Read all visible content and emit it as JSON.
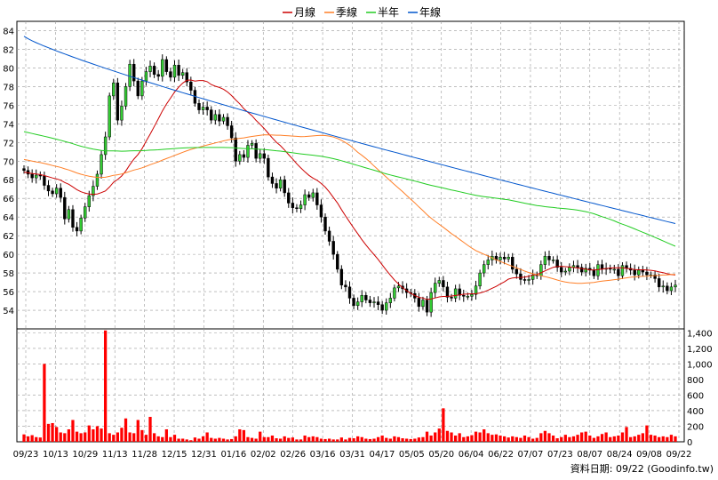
{
  "chart_data": {
    "type": "candlestick",
    "legend": [
      {
        "name": "月線",
        "color": "#cc0000"
      },
      {
        "name": "季線",
        "color": "#ff7f27"
      },
      {
        "name": "半年",
        "color": "#22cc22"
      },
      {
        "name": "年線",
        "color": "#0055cc"
      }
    ],
    "legend_position": "top-center",
    "grid": true,
    "price_axis": {
      "side": "left",
      "ylim": [
        52,
        85
      ],
      "ticks": [
        54,
        56,
        58,
        60,
        62,
        64,
        66,
        68,
        70,
        72,
        74,
        76,
        78,
        80,
        82,
        84
      ]
    },
    "volume_axis": {
      "side": "right",
      "ylim": [
        0,
        1450
      ],
      "ticks": [
        "0",
        "200",
        "400",
        "600",
        "800",
        "1,000",
        "1,200",
        "1,400"
      ]
    },
    "x_labels": [
      "09/23",
      "10/13",
      "10/29",
      "11/13",
      "11/28",
      "12/15",
      "12/31",
      "01/16",
      "02/02",
      "02/26",
      "03/16",
      "03/31",
      "04/17",
      "05/05",
      "05/20",
      "06/04",
      "06/22",
      "07/07",
      "07/23",
      "08/07",
      "08/24",
      "09/08",
      "09/22"
    ],
    "candle_colors": {
      "up": "#33cc33",
      "down": "#000000",
      "volume": "#ff0000"
    },
    "close": [
      69.0,
      68.6,
      68.2,
      68.5,
      68.4,
      67.4,
      66.8,
      66.5,
      67.1,
      66.1,
      63.8,
      64.8,
      62.9,
      62.5,
      63.9,
      65.1,
      66.3,
      67.3,
      68.6,
      70.7,
      72.6,
      77.0,
      78.4,
      74.4,
      75.9,
      78.0,
      80.4,
      78.6,
      77.0,
      78.6,
      79.6,
      80.2,
      79.3,
      79.1,
      80.9,
      79.6,
      79.0,
      80.3,
      79.2,
      79.5,
      78.5,
      77.6,
      76.2,
      75.5,
      75.8,
      75.5,
      74.4,
      75.0,
      74.3,
      74.7,
      73.8,
      72.5,
      70.0,
      70.7,
      70.4,
      71.7,
      71.9,
      70.3,
      70.8,
      70.3,
      68.3,
      67.6,
      67.1,
      68.0,
      66.6,
      65.5,
      65.0,
      64.9,
      65.3,
      66.4,
      66.1,
      66.6,
      65.3,
      64.0,
      62.5,
      61.4,
      60.0,
      58.4,
      56.7,
      56.5,
      55.3,
      54.5,
      54.9,
      55.6,
      55.1,
      54.8,
      54.9,
      54.6,
      54.0,
      54.8,
      55.3,
      56.4,
      56.6,
      56.3,
      55.9,
      55.8,
      55.3,
      54.4,
      55.1,
      53.8,
      55.9,
      56.9,
      57.2,
      56.5,
      55.4,
      55.3,
      56.3,
      55.6,
      55.5,
      55.5,
      55.7,
      56.6,
      58.0,
      58.9,
      59.4,
      59.8,
      59.4,
      59.7,
      59.5,
      59.7,
      58.4,
      57.9,
      57.3,
      57.2,
      57.3,
      57.8,
      57.7,
      58.9,
      59.8,
      59.4,
      59.4,
      58.6,
      58.1,
      58.2,
      58.6,
      58.8,
      58.6,
      58.1,
      58.5,
      58.3,
      57.7,
      58.9,
      58.4,
      58.5,
      58.4,
      58.4,
      57.7,
      58.8,
      58.5,
      58.3,
      57.8,
      58.3,
      58.1,
      57.8,
      57.8,
      57.4,
      56.5,
      56.6,
      56.1,
      56.5,
      56.7
    ],
    "volume": [
      95,
      70,
      85,
      60,
      55,
      1000,
      230,
      240,
      190,
      120,
      110,
      160,
      280,
      130,
      110,
      120,
      210,
      160,
      200,
      170,
      1430,
      110,
      90,
      120,
      180,
      300,
      120,
      110,
      280,
      150,
      90,
      320,
      110,
      70,
      60,
      160,
      60,
      90,
      40,
      40,
      30,
      20,
      55,
      40,
      70,
      120,
      50,
      40,
      50,
      40,
      30,
      35,
      70,
      160,
      150,
      60,
      50,
      40,
      130,
      60,
      60,
      80,
      45,
      40,
      70,
      50,
      55,
      30,
      30,
      80,
      60,
      70,
      60,
      40,
      35,
      40,
      30,
      30,
      55,
      30,
      50,
      45,
      70,
      60,
      40,
      35,
      40,
      60,
      80,
      50,
      40,
      70,
      60,
      45,
      40,
      35,
      40,
      55,
      60,
      130,
      80,
      120,
      170,
      430,
      140,
      120,
      80,
      110,
      60,
      70,
      85,
      130,
      120,
      160,
      110,
      90,
      95,
      80,
      70,
      55,
      70,
      60,
      50,
      80,
      60,
      40,
      50,
      110,
      140,
      110,
      80,
      45,
      60,
      90,
      60,
      70,
      90,
      120,
      130,
      80,
      50,
      70,
      100,
      120,
      60,
      70,
      80,
      120,
      190,
      60,
      70,
      90,
      110,
      210,
      90,
      80,
      60,
      70,
      60,
      90,
      70
    ],
    "note": "資料日期: 09/22 (Goodinfo.tw)"
  }
}
